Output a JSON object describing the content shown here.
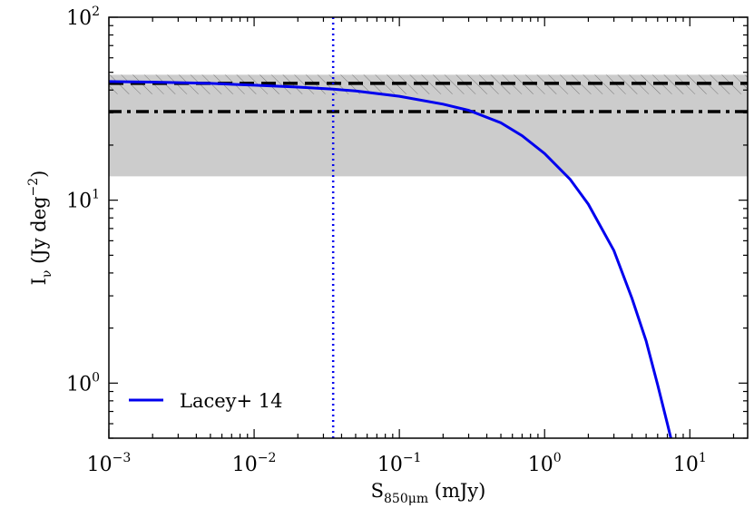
{
  "chart_data": {
    "type": "line",
    "xscale": "log",
    "yscale": "log",
    "xlim": [
      0.001,
      25
    ],
    "ylim": [
      0.5,
      100
    ],
    "xlabel": "S850μm (mJy)",
    "xlabel_main": "S",
    "xlabel_sub": "850μm",
    "xlabel_unit": " (mJy)",
    "ylabel": "Iν (Jy deg⁻²)",
    "ylabel_main": "I",
    "ylabel_sub": "ν",
    "ylabel_unit": " (Jy deg",
    "ylabel_exp": "−2",
    "ylabel_close": ")",
    "x_ticks": [
      {
        "value": 0.001,
        "base": "10",
        "exp": "−3"
      },
      {
        "value": 0.01,
        "base": "10",
        "exp": "−2"
      },
      {
        "value": 0.1,
        "base": "10",
        "exp": "−1"
      },
      {
        "value": 1,
        "base": "10",
        "exp": "0"
      },
      {
        "value": 10,
        "base": "10",
        "exp": "1"
      }
    ],
    "y_ticks": [
      {
        "value": 1,
        "base": "10",
        "exp": "0"
      },
      {
        "value": 10,
        "base": "10",
        "exp": "1"
      },
      {
        "value": 100,
        "base": "10",
        "exp": "2"
      }
    ],
    "series": [
      {
        "name": "Lacey+ 14",
        "color": "#0000ee",
        "x": [
          0.001,
          0.002,
          0.005,
          0.01,
          0.02,
          0.035,
          0.05,
          0.1,
          0.2,
          0.3,
          0.5,
          0.7,
          1.0,
          1.5,
          2.0,
          3.0,
          4.0,
          5.0,
          6.0,
          7.0,
          7.4
        ],
        "y": [
          44.5,
          44.2,
          43.5,
          42.5,
          41.5,
          40.5,
          39.5,
          37.0,
          33.5,
          31.0,
          26.5,
          22.5,
          18.0,
          13.0,
          9.5,
          5.3,
          2.9,
          1.7,
          0.98,
          0.6,
          0.5
        ]
      }
    ],
    "shaded_band": {
      "ymin": 13.5,
      "ymax": 48.5,
      "color": "#cccccc"
    },
    "hatched_band": {
      "ymin": 38.0,
      "ymax": 48.5
    },
    "hlines": [
      {
        "y": 43.5,
        "style": "dashed",
        "color": "#000000"
      },
      {
        "y": 30.5,
        "style": "dashdot",
        "color": "#000000"
      }
    ],
    "vlines": [
      {
        "x": 0.035,
        "style": "dotted",
        "color": "#0000ee"
      }
    ],
    "legend": {
      "position": "bottom-left",
      "entries": [
        "Lacey+ 14"
      ]
    }
  }
}
